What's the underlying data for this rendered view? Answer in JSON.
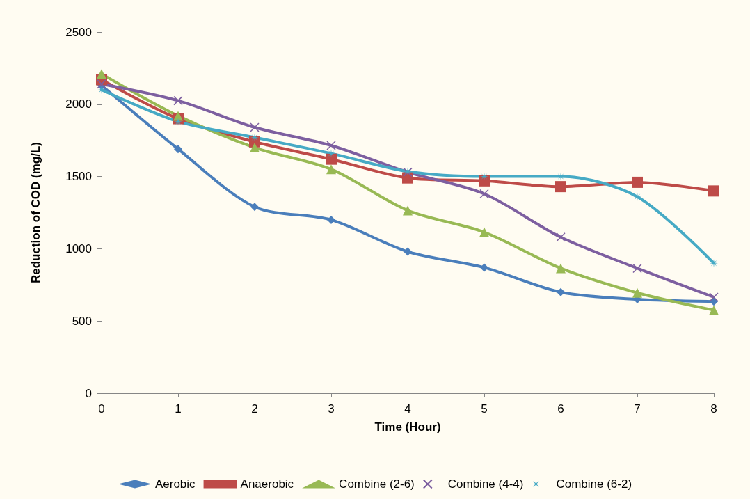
{
  "chart_data": {
    "type": "line",
    "xlabel": "Time (Hour)",
    "ylabel": "Reduction of COD (mg/L)",
    "x": [
      0,
      1,
      2,
      3,
      4,
      5,
      6,
      7,
      8
    ],
    "xlim": [
      0,
      8
    ],
    "xticks": [
      0,
      1,
      2,
      3,
      4,
      5,
      6,
      7,
      8
    ],
    "ylim": [
      0,
      2500
    ],
    "yticks": [
      0,
      500,
      1000,
      1500,
      2000,
      2500
    ],
    "grid": false,
    "legend": "bottom",
    "line_style": "solid",
    "series": [
      {
        "name": "Aerobic",
        "color": "#4a7ebb",
        "marker": "diamond",
        "values": [
          2130,
          1690,
          1290,
          1200,
          980,
          870,
          700,
          650,
          635
        ]
      },
      {
        "name": "Anaerobic",
        "color": "#be4b48",
        "marker": "square",
        "values": [
          2170,
          1900,
          1740,
          1620,
          1490,
          1470,
          1430,
          1460,
          1400
        ]
      },
      {
        "name": "Combine (2-6)",
        "color": "#98b954",
        "marker": "triangle",
        "values": [
          2210,
          1920,
          1700,
          1550,
          1265,
          1115,
          865,
          695,
          575
        ]
      },
      {
        "name": "Combine (4-4)",
        "color": "#7d5fa0",
        "marker": "cross",
        "values": [
          2140,
          2025,
          1840,
          1715,
          1530,
          1380,
          1080,
          865,
          665
        ]
      },
      {
        "name": "Combine (6-2)",
        "color": "#46aac5",
        "marker": "star",
        "values": [
          2100,
          1880,
          1770,
          1660,
          1535,
          1500,
          1500,
          1360,
          900
        ]
      }
    ]
  }
}
